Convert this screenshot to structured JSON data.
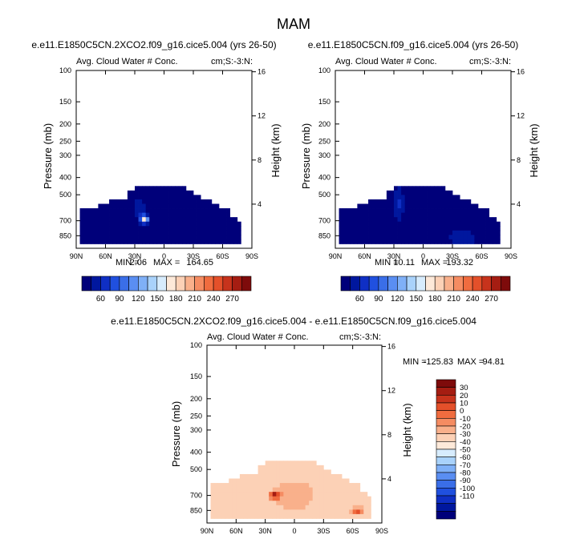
{
  "figure": {
    "season": "MAM"
  },
  "cold_colors": [
    "#00007a",
    "#00179e",
    "#0f2fc4",
    "#2050df",
    "#3a6ee8",
    "#5a8ef2",
    "#7fb0f7",
    "#a9d2fb",
    "#d7ecfd"
  ],
  "warm_colors": [
    "#fde9d9",
    "#fcd1b6",
    "#f9b08b",
    "#f58c62",
    "#f06c3f",
    "#e4502a",
    "#c7331c",
    "#a51d12",
    "#7e0b0b"
  ],
  "diff_colors": [
    "#00007a",
    "#00179e",
    "#0f2fc4",
    "#2050df",
    "#3a6ee8",
    "#5a8ef2",
    "#7fb0f7",
    "#a9d2fb",
    "#d7ecfd",
    "#fde9d9",
    "#fcd1b6",
    "#f9b08b",
    "#f58c62",
    "#f06c3f",
    "#e4502a",
    "#c7331c",
    "#a51d12",
    "#7e0b0b"
  ],
  "chart_data": [
    {
      "type": "heatmap",
      "title": "e.e11.E1850C5CN.2XCO2.f09_g16.cice5.004 (yrs 26-50)",
      "left_label": "Avg. Cloud Water # Conc.",
      "right_label": "cm;S:-3:N:",
      "ylabel": "Pressure (mb)",
      "ylabel_right": "Height (km)",
      "x_ticks": [
        "90N",
        "60N",
        "30N",
        "0",
        "30S",
        "60S",
        "90S"
      ],
      "y_ticks": [
        "100",
        "150",
        "200",
        "250",
        "300",
        "400",
        "500",
        "700",
        "850"
      ],
      "y_ticks_right": [
        "16",
        "12",
        "8",
        "4"
      ],
      "xlim": [
        90,
        -90
      ],
      "ylim_mb": [
        1000,
        100
      ],
      "log_pressure": true,
      "stats": {
        "min_label": "MIN =",
        "min": "2.06",
        "max_label": "MAX =",
        "max": "164.65"
      },
      "colorbar_labels": [
        "60",
        "90",
        "120",
        "150",
        "180",
        "210",
        "240",
        "270"
      ],
      "hotspot": {
        "lat": 20,
        "p": 700,
        "value": 164.65
      }
    },
    {
      "type": "heatmap",
      "title": "e.e11.E1850C5CN.f09_g16.cice5.004 (yrs 26-50)",
      "left_label": "Avg. Cloud Water # Conc.",
      "right_label": "cm;S:-3:N:",
      "ylabel": "Pressure (mb)",
      "ylabel_right": "Height (km)",
      "x_ticks": [
        "90N",
        "60N",
        "30N",
        "0",
        "30S",
        "60S",
        "90S"
      ],
      "y_ticks": [
        "100",
        "150",
        "200",
        "250",
        "300",
        "400",
        "500",
        "700",
        "850"
      ],
      "y_ticks_right": [
        "16",
        "12",
        "8",
        "4"
      ],
      "xlim": [
        90,
        -90
      ],
      "ylim_mb": [
        1000,
        100
      ],
      "log_pressure": true,
      "stats": {
        "min_label": "MIN =",
        "min": "10.11",
        "max_label": "MAX =",
        "max": "193.32"
      },
      "colorbar_labels": [
        "60",
        "90",
        "120",
        "150",
        "180",
        "210",
        "240",
        "270"
      ]
    },
    {
      "type": "heatmap",
      "title": "e.e11.E1850C5CN.2XCO2.f09_g16.cice5.004 - e.e11.E1850C5CN.f09_g16.cice5.004",
      "left_label": "Avg. Cloud Water # Conc.",
      "right_label": "cm;S:-3:N:",
      "ylabel": "Pressure (mb)",
      "ylabel_right": "Height (km)",
      "x_ticks": [
        "90N",
        "60N",
        "30N",
        "0",
        "30S",
        "60S",
        "90S"
      ],
      "y_ticks": [
        "100",
        "150",
        "200",
        "250",
        "300",
        "400",
        "500",
        "700",
        "850"
      ],
      "y_ticks_right": [
        "16",
        "12",
        "8",
        "4"
      ],
      "xlim": [
        90,
        -90
      ],
      "ylim_mb": [
        1000,
        100
      ],
      "log_pressure": true,
      "stats": {
        "min_label": "MIN =",
        "min": "-125.83",
        "max_label": "MAX =",
        "max": "94.81"
      },
      "colorbar_labels": [
        "30",
        "20",
        "10",
        "0",
        "-10",
        "-20",
        "-30",
        "-40",
        "-50",
        "-60",
        "-70",
        "-80",
        "-90",
        "-100",
        "-110"
      ]
    }
  ]
}
